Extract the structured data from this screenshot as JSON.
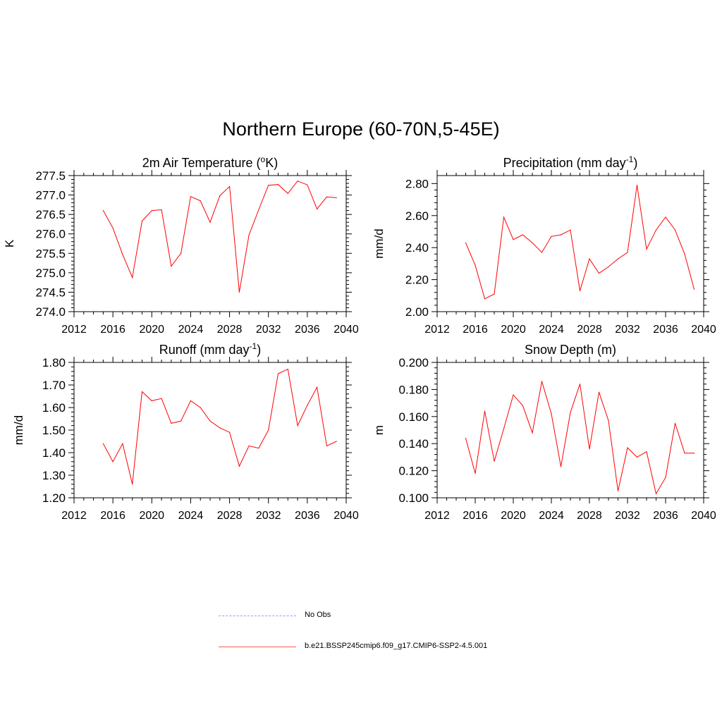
{
  "page_title": "Northern Europe (60-70N,5-45E)",
  "legend": [
    {
      "label": "No Obs",
      "color": "#9999ff",
      "style": "dashed"
    },
    {
      "label": "b.e21.BSSP245cmip6.f09_g17.CMIP6-SSP2-4.5.001",
      "color": "#ff0000",
      "style": "solid"
    }
  ],
  "chart_data": [
    {
      "type": "line",
      "title": "2m Air Temperature (",
      "title_sup": "o",
      "title_suffix": "K)",
      "ylabel": "K",
      "xlim": [
        2012,
        2040
      ],
      "ylim": [
        274.0,
        277.5
      ],
      "xticks": [
        2012,
        2016,
        2020,
        2024,
        2028,
        2032,
        2036,
        2040
      ],
      "xtick_labels": [
        "2012",
        "2016",
        "2020",
        "2024",
        "2028",
        "2032",
        "2036",
        "2040"
      ],
      "yticks": [
        274.0,
        274.5,
        275.0,
        275.5,
        276.0,
        276.5,
        277.0,
        277.5
      ],
      "ytick_labels": [
        "274.0",
        "274.5",
        "275.0",
        "275.5",
        "276.0",
        "276.5",
        "277.0",
        "277.5"
      ],
      "series": [
        {
          "color": "#ff0000",
          "x": [
            2015,
            2016,
            2017,
            2018,
            2019,
            2020,
            2021,
            2022,
            2023,
            2024,
            2025,
            2026,
            2027,
            2028,
            2029,
            2030,
            2031,
            2032,
            2033,
            2034,
            2035,
            2036,
            2037,
            2038,
            2039
          ],
          "y": [
            276.6,
            276.15,
            275.47,
            274.88,
            276.33,
            276.6,
            276.62,
            275.17,
            275.5,
            276.96,
            276.85,
            276.3,
            276.98,
            277.22,
            274.5,
            275.97,
            276.62,
            277.25,
            277.27,
            277.04,
            277.36,
            277.26,
            276.64,
            276.95,
            276.93
          ]
        }
      ]
    },
    {
      "type": "line",
      "title": "Precipitation (mm day",
      "title_sup": "-1",
      "title_suffix": ")",
      "ylabel": "mm/d",
      "xlim": [
        2012,
        2040
      ],
      "ylim": [
        2.0,
        2.85
      ],
      "xticks": [
        2012,
        2016,
        2020,
        2024,
        2028,
        2032,
        2036,
        2040
      ],
      "xtick_labels": [
        "2012",
        "2016",
        "2020",
        "2024",
        "2028",
        "2032",
        "2036",
        "2040"
      ],
      "yticks": [
        2.0,
        2.2,
        2.4,
        2.6,
        2.8
      ],
      "ytick_labels": [
        "2.00",
        "2.20",
        "2.40",
        "2.60",
        "2.80"
      ],
      "series": [
        {
          "color": "#ff0000",
          "x": [
            2015,
            2016,
            2017,
            2018,
            2019,
            2020,
            2021,
            2022,
            2023,
            2024,
            2025,
            2026,
            2027,
            2028,
            2029,
            2030,
            2031,
            2032,
            2033,
            2034,
            2035,
            2036,
            2037,
            2038,
            2039
          ],
          "y": [
            2.43,
            2.29,
            2.08,
            2.11,
            2.59,
            2.45,
            2.48,
            2.43,
            2.37,
            2.47,
            2.48,
            2.51,
            2.13,
            2.33,
            2.24,
            2.28,
            2.33,
            2.37,
            2.79,
            2.39,
            2.51,
            2.59,
            2.51,
            2.36,
            2.14
          ]
        }
      ]
    },
    {
      "type": "line",
      "title": "Runoff (mm day",
      "title_sup": "-1",
      "title_suffix": ")",
      "ylabel": "mm/d",
      "xlim": [
        2012,
        2040
      ],
      "ylim": [
        1.2,
        1.8
      ],
      "xticks": [
        2012,
        2016,
        2020,
        2024,
        2028,
        2032,
        2036,
        2040
      ],
      "xtick_labels": [
        "2012",
        "2016",
        "2020",
        "2024",
        "2028",
        "2032",
        "2036",
        "2040"
      ],
      "yticks": [
        1.2,
        1.3,
        1.4,
        1.5,
        1.6,
        1.7,
        1.8
      ],
      "ytick_labels": [
        "1.20",
        "1.30",
        "1.40",
        "1.50",
        "1.60",
        "1.70",
        "1.80"
      ],
      "series": [
        {
          "color": "#ff0000",
          "x": [
            2015,
            2016,
            2017,
            2018,
            2019,
            2020,
            2021,
            2022,
            2023,
            2024,
            2025,
            2026,
            2027,
            2028,
            2029,
            2030,
            2031,
            2032,
            2033,
            2034,
            2035,
            2036,
            2037,
            2038,
            2039
          ],
          "y": [
            1.44,
            1.36,
            1.44,
            1.26,
            1.67,
            1.63,
            1.64,
            1.53,
            1.54,
            1.63,
            1.6,
            1.54,
            1.51,
            1.49,
            1.34,
            1.43,
            1.42,
            1.5,
            1.75,
            1.77,
            1.52,
            1.61,
            1.69,
            1.43,
            1.45
          ]
        }
      ]
    },
    {
      "type": "line",
      "title": "Snow Depth (m)",
      "title_sup": "",
      "title_suffix": "",
      "ylabel": "m",
      "xlim": [
        2012,
        2040
      ],
      "ylim": [
        0.1,
        0.2
      ],
      "xticks": [
        2012,
        2016,
        2020,
        2024,
        2028,
        2032,
        2036,
        2040
      ],
      "xtick_labels": [
        "2012",
        "2016",
        "2020",
        "2024",
        "2028",
        "2032",
        "2036",
        "2040"
      ],
      "yticks": [
        0.1,
        0.12,
        0.14,
        0.16,
        0.18,
        0.2
      ],
      "ytick_labels": [
        "0.100",
        "0.120",
        "0.140",
        "0.160",
        "0.180",
        "0.200"
      ],
      "series": [
        {
          "color": "#ff0000",
          "x": [
            2015,
            2016,
            2017,
            2018,
            2019,
            2020,
            2021,
            2022,
            2023,
            2024,
            2025,
            2026,
            2027,
            2028,
            2029,
            2030,
            2031,
            2032,
            2033,
            2034,
            2035,
            2036,
            2037,
            2038,
            2039
          ],
          "y": [
            0.144,
            0.118,
            0.164,
            0.127,
            0.151,
            0.176,
            0.168,
            0.148,
            0.186,
            0.162,
            0.123,
            0.163,
            0.184,
            0.136,
            0.178,
            0.157,
            0.105,
            0.137,
            0.13,
            0.134,
            0.103,
            0.115,
            0.155,
            0.133,
            0.133
          ]
        }
      ]
    }
  ]
}
